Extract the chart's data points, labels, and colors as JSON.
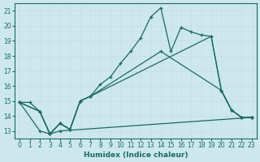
{
  "xlabel": "Humidex (Indice chaleur)",
  "background_color": "#cce8ee",
  "grid_color": "#dde8ec",
  "line_color": "#1a6b5e",
  "xlim": [
    -0.5,
    23.5
  ],
  "ylim": [
    12.5,
    21.5
  ],
  "xticks": [
    0,
    1,
    2,
    3,
    4,
    5,
    6,
    7,
    8,
    9,
    10,
    11,
    12,
    13,
    14,
    15,
    16,
    17,
    18,
    19,
    20,
    21,
    22,
    23
  ],
  "yticks": [
    13,
    14,
    15,
    16,
    17,
    18,
    19,
    20,
    21
  ],
  "line1_x": [
    0,
    1,
    2,
    3,
    4,
    5,
    6,
    7,
    8,
    9,
    10,
    11,
    12,
    13,
    14,
    15,
    16,
    17,
    18,
    19,
    20,
    21,
    22,
    23
  ],
  "line1_y": [
    14.9,
    14.9,
    14.3,
    12.8,
    13.5,
    13.1,
    15.0,
    15.3,
    16.1,
    16.6,
    17.5,
    18.3,
    19.2,
    20.6,
    21.2,
    18.3,
    19.9,
    19.6,
    19.4,
    19.3,
    15.7,
    14.4,
    13.9,
    13.9
  ],
  "line2_x": [
    0,
    2,
    3,
    4,
    5,
    6,
    7,
    14,
    20,
    21,
    22,
    23
  ],
  "line2_y": [
    14.9,
    14.3,
    12.8,
    13.5,
    13.1,
    15.0,
    15.3,
    18.3,
    15.7,
    14.4,
    13.9,
    13.9
  ],
  "line3_x": [
    0,
    2,
    3,
    4,
    5,
    6,
    7,
    19,
    20,
    21,
    22,
    23
  ],
  "line3_y": [
    14.9,
    14.3,
    12.8,
    13.5,
    13.1,
    15.0,
    15.3,
    19.3,
    15.7,
    14.4,
    13.9,
    13.9
  ],
  "line4_x": [
    0,
    2,
    3,
    4,
    23
  ],
  "line4_y": [
    14.9,
    13.0,
    12.8,
    13.0,
    13.9
  ]
}
